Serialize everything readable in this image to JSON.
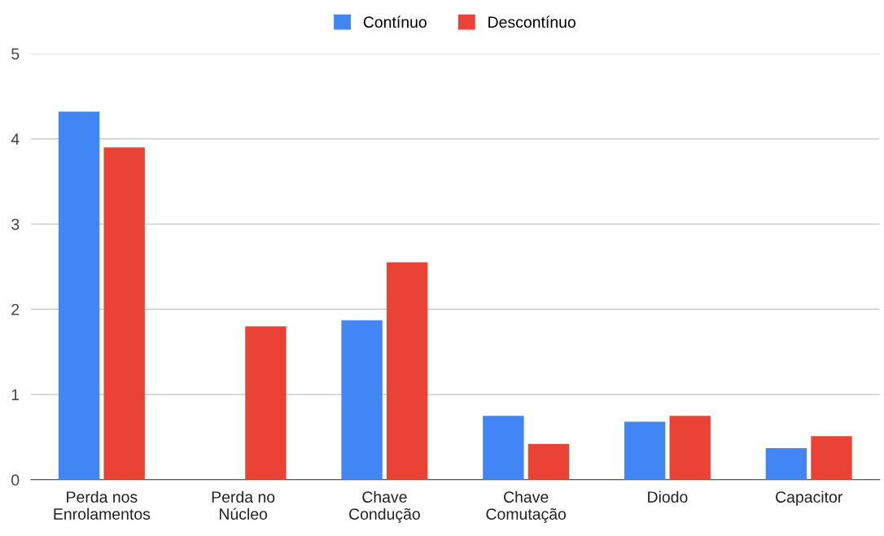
{
  "chart_data": {
    "type": "bar",
    "categories": [
      "Perda nos\nEnrolamentos",
      "Perda no\nNúcleo",
      "Chave\nCondução",
      "Chave\nComutação",
      "Diodo",
      "Capacitor"
    ],
    "series": [
      {
        "name": "Contínuo",
        "color": "#4285f4",
        "values": [
          4.32,
          0,
          1.87,
          0.75,
          0.68,
          0.37
        ]
      },
      {
        "name": "Descontínuo",
        "color": "#ea4335",
        "values": [
          3.9,
          1.8,
          2.55,
          0.42,
          0.75,
          0.51
        ]
      }
    ],
    "ylim": [
      0,
      5
    ],
    "yticks": [
      0,
      1,
      2,
      3,
      4,
      5
    ],
    "grid": "y",
    "legend": "top"
  }
}
